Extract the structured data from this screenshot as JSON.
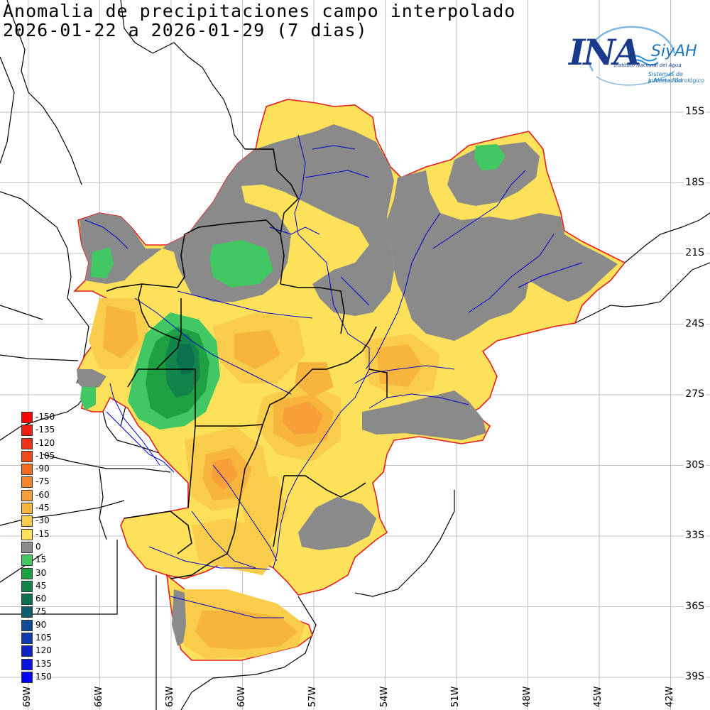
{
  "title": {
    "line1": "Anomalia de precipitaciones campo interpolado",
    "line2": "2026-01-22 a 2026-01-29 (7 dias)"
  },
  "lat_labels": [
    "15S",
    "18S",
    "21S",
    "24S",
    "27S",
    "30S",
    "33S",
    "36S",
    "39S"
  ],
  "lon_labels": [
    "69W",
    "66W",
    "63W",
    "60W",
    "57W",
    "54W",
    "51W",
    "48W",
    "45W",
    "42W"
  ],
  "legend": [
    {
      "label": "-150",
      "color": "#ff0000"
    },
    {
      "label": "-135",
      "color": "#f41d12"
    },
    {
      "label": "-120",
      "color": "#ee3218"
    },
    {
      "label": "-105",
      "color": "#ee4a1c"
    },
    {
      "label": "-90",
      "color": "#f46a20"
    },
    {
      "label": "-75",
      "color": "#f68428"
    },
    {
      "label": "-60",
      "color": "#f7a03a"
    },
    {
      "label": "-45",
      "color": "#f7b53e"
    },
    {
      "label": "-30",
      "color": "#f9cc49"
    },
    {
      "label": "-15",
      "color": "#fde15a"
    },
    {
      "label": "0",
      "color": "#8a8a8a"
    },
    {
      "label": "15",
      "color": "#41c862"
    },
    {
      "label": "30",
      "color": "#1ea043"
    },
    {
      "label": "45",
      "color": "#10844a"
    },
    {
      "label": "60",
      "color": "#0a7050"
    },
    {
      "label": "75",
      "color": "#0e5e6e"
    },
    {
      "label": "90",
      "color": "#0f4a96"
    },
    {
      "label": "105",
      "color": "#1238b2"
    },
    {
      "label": "120",
      "color": "#0c22c8"
    },
    {
      "label": "135",
      "color": "#0a12e0"
    },
    {
      "label": "150",
      "color": "#0000ff"
    }
  ],
  "logo": {
    "main": "INA",
    "siyah": "SiyAH",
    "subtitle": "Instituto Nacional del Agua",
    "tagline1": "Sistemas de Información",
    "tagline2": "y Alerta Hidrológico"
  },
  "colors": {
    "outline": "#e02020",
    "river": "#0000cc",
    "border": "#000000",
    "grid": "#c0c0c0"
  }
}
